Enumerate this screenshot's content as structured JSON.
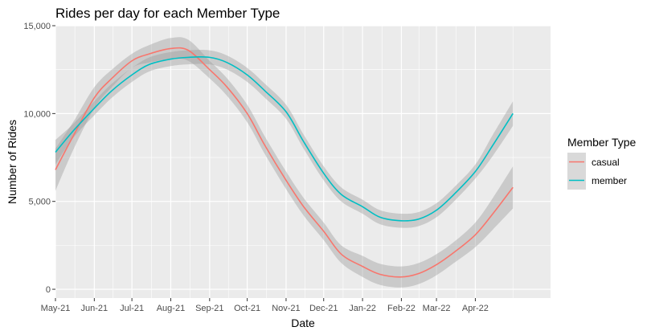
{
  "chart_data": {
    "type": "line",
    "title": "Rides per day for each Member Type",
    "xlabel": "Date",
    "ylabel": "Number of Rides",
    "x_range": [
      "2021-05-01",
      "2022-05-31"
    ],
    "ylim": [
      -500,
      15000
    ],
    "y_ticks": [
      0,
      5000,
      10000,
      15000
    ],
    "y_tick_labels": [
      "0",
      "5,000",
      "10,000",
      "15,000"
    ],
    "x_ticks": [
      "2021-05-01",
      "2021-06-01",
      "2021-07-01",
      "2021-08-01",
      "2021-09-01",
      "2021-10-01",
      "2021-11-01",
      "2021-12-01",
      "2022-01-01",
      "2022-02-01",
      "2022-03-01",
      "2022-04-01"
    ],
    "x_tick_labels": [
      "May-21",
      "Jun-21",
      "Jul-21",
      "Aug-21",
      "Sep-21",
      "Oct-21",
      "Nov-21",
      "Dec-21",
      "Jan-22",
      "Feb-22",
      "Mar-22",
      "Apr-22"
    ],
    "grid": true,
    "panel_background": "#ebebeb",
    "legend": {
      "title": "Member Type",
      "position": "right"
    },
    "series": [
      {
        "name": "casual",
        "color": "#f8766d",
        "points": [
          [
            "2021-05-01",
            6800
          ],
          [
            "2021-05-15",
            8700
          ],
          [
            "2021-06-01",
            10900
          ],
          [
            "2021-06-15",
            12000
          ],
          [
            "2021-07-01",
            13000
          ],
          [
            "2021-07-15",
            13400
          ],
          [
            "2021-08-01",
            13700
          ],
          [
            "2021-08-15",
            13600
          ],
          [
            "2021-09-01",
            12500
          ],
          [
            "2021-09-15",
            11500
          ],
          [
            "2021-10-01",
            10000
          ],
          [
            "2021-10-15",
            8200
          ],
          [
            "2021-11-01",
            6200
          ],
          [
            "2021-11-15",
            4700
          ],
          [
            "2021-12-01",
            3300
          ],
          [
            "2021-12-15",
            2000
          ],
          [
            "2022-01-01",
            1300
          ],
          [
            "2022-01-15",
            850
          ],
          [
            "2022-02-01",
            700
          ],
          [
            "2022-02-15",
            900
          ],
          [
            "2022-03-01",
            1400
          ],
          [
            "2022-03-15",
            2100
          ],
          [
            "2022-04-01",
            3100
          ],
          [
            "2022-04-15",
            4300
          ],
          [
            "2022-05-01",
            5800
          ]
        ],
        "band": [
          [
            "2021-05-01",
            5600,
            8000
          ],
          [
            "2021-05-15",
            7900,
            9500
          ],
          [
            "2021-06-01",
            10300,
            11500
          ],
          [
            "2021-06-15",
            11500,
            12500
          ],
          [
            "2021-07-01",
            12600,
            13400
          ],
          [
            "2021-07-15",
            12900,
            13900
          ],
          [
            "2021-08-01",
            13100,
            14300
          ],
          [
            "2021-08-15",
            13000,
            14200
          ],
          [
            "2021-09-01",
            12000,
            13000
          ],
          [
            "2021-09-15",
            11000,
            12000
          ],
          [
            "2021-10-01",
            9500,
            10500
          ],
          [
            "2021-10-15",
            7700,
            8700
          ],
          [
            "2021-11-01",
            5700,
            6700
          ],
          [
            "2021-11-15",
            4200,
            5200
          ],
          [
            "2021-12-01",
            2800,
            3800
          ],
          [
            "2021-12-15",
            1500,
            2500
          ],
          [
            "2022-01-01",
            700,
            1900
          ],
          [
            "2022-01-15",
            250,
            1450
          ],
          [
            "2022-02-01",
            100,
            1300
          ],
          [
            "2022-02-15",
            300,
            1500
          ],
          [
            "2022-03-01",
            800,
            2000
          ],
          [
            "2022-03-15",
            1500,
            2700
          ],
          [
            "2022-04-01",
            2400,
            3800
          ],
          [
            "2022-04-15",
            3400,
            5200
          ],
          [
            "2022-05-01",
            4600,
            7000
          ]
        ]
      },
      {
        "name": "member",
        "color": "#00bfc4",
        "points": [
          [
            "2021-05-01",
            7800
          ],
          [
            "2021-05-15",
            9000
          ],
          [
            "2021-06-01",
            10300
          ],
          [
            "2021-06-15",
            11300
          ],
          [
            "2021-07-01",
            12200
          ],
          [
            "2021-07-15",
            12800
          ],
          [
            "2021-08-01",
            13100
          ],
          [
            "2021-08-15",
            13200
          ],
          [
            "2021-09-01",
            13200
          ],
          [
            "2021-09-15",
            12900
          ],
          [
            "2021-10-01",
            12200
          ],
          [
            "2021-10-15",
            11300
          ],
          [
            "2021-11-01",
            10100
          ],
          [
            "2021-11-15",
            8400
          ],
          [
            "2021-12-01",
            6600
          ],
          [
            "2021-12-15",
            5400
          ],
          [
            "2022-01-01",
            4700
          ],
          [
            "2022-01-15",
            4100
          ],
          [
            "2022-02-01",
            3900
          ],
          [
            "2022-02-15",
            4000
          ],
          [
            "2022-03-01",
            4500
          ],
          [
            "2022-03-15",
            5400
          ],
          [
            "2022-04-01",
            6700
          ],
          [
            "2022-04-15",
            8200
          ],
          [
            "2022-05-01",
            10000
          ]
        ],
        "band": [
          [
            "2021-05-01",
            7100,
            8500
          ],
          [
            "2021-05-15",
            8600,
            9400
          ],
          [
            "2021-06-01",
            9900,
            10700
          ],
          [
            "2021-06-15",
            10900,
            11700
          ],
          [
            "2021-07-01",
            11800,
            12600
          ],
          [
            "2021-07-15",
            12400,
            13200
          ],
          [
            "2021-08-01",
            12700,
            13500
          ],
          [
            "2021-08-15",
            12800,
            13600
          ],
          [
            "2021-09-01",
            12800,
            13600
          ],
          [
            "2021-09-15",
            12500,
            13300
          ],
          [
            "2021-10-01",
            11800,
            12600
          ],
          [
            "2021-10-15",
            10900,
            11700
          ],
          [
            "2021-11-01",
            9700,
            10500
          ],
          [
            "2021-11-15",
            8000,
            8800
          ],
          [
            "2021-12-01",
            6200,
            7000
          ],
          [
            "2021-12-15",
            5000,
            5800
          ],
          [
            "2022-01-01",
            4300,
            5100
          ],
          [
            "2022-01-15",
            3700,
            4500
          ],
          [
            "2022-02-01",
            3500,
            4300
          ],
          [
            "2022-02-15",
            3600,
            4400
          ],
          [
            "2022-03-01",
            4100,
            4900
          ],
          [
            "2022-03-15",
            5000,
            5800
          ],
          [
            "2022-04-01",
            6300,
            7100
          ],
          [
            "2022-04-15",
            7600,
            8800
          ],
          [
            "2022-05-01",
            9300,
            10700
          ]
        ]
      }
    ]
  }
}
